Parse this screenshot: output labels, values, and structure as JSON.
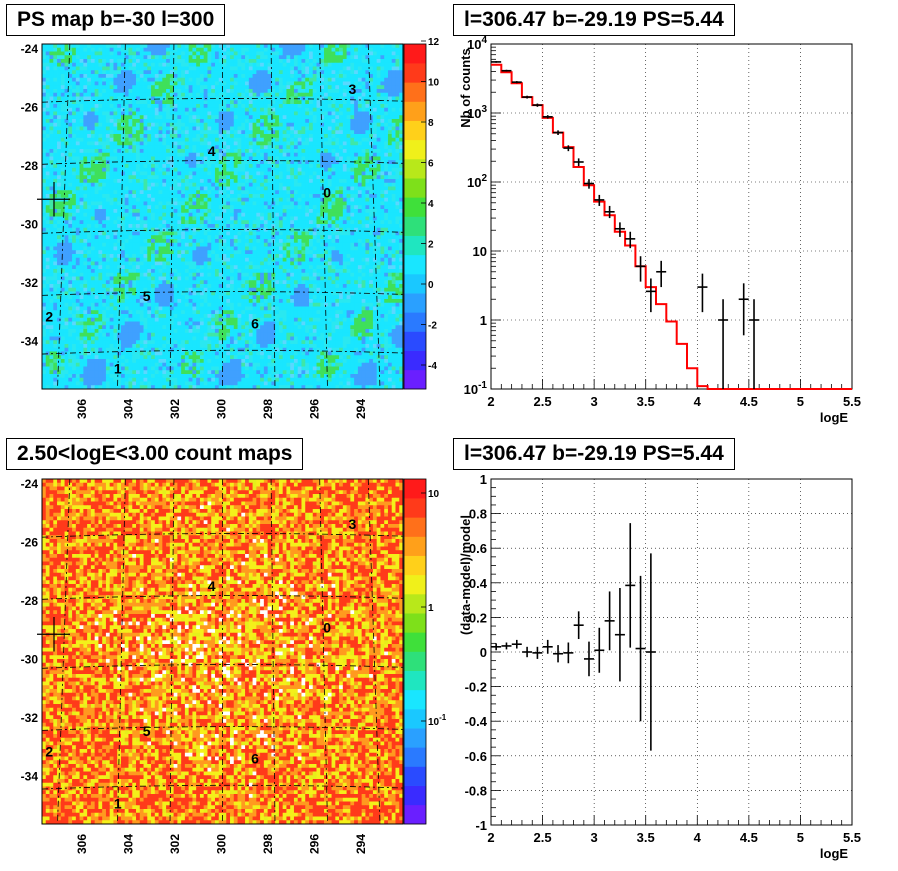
{
  "panels": {
    "map_top_title": "PS map b=-30 l=300",
    "spectrum_title": "l=306.47 b=-29.19 PS=5.44",
    "map_bottom_title": "2.50<logE<3.00 count maps",
    "residual_title": "l=306.47 b=-29.19 PS=5.44"
  },
  "chart_data": [
    {
      "type": "heatmap",
      "name": "ps-map",
      "title": "PS map b=-30 l=300",
      "xticks": [
        "306",
        "304",
        "302",
        "300",
        "298",
        "296",
        "294"
      ],
      "yticks": [
        "-24",
        "-26",
        "-28",
        "-30",
        "-32",
        "-34"
      ],
      "colorbar_ticks": [
        "-4",
        "-2",
        "0",
        "2",
        "4",
        "6",
        "8",
        "10",
        "12"
      ],
      "zlim": [
        -5,
        12
      ],
      "source_labels": [
        "0",
        "1",
        "2",
        "3",
        "4",
        "5",
        "6"
      ],
      "colors": {
        "background": "#19e6ff",
        "low": "#3fa0ff",
        "high": "#3fe05a"
      }
    },
    {
      "type": "line",
      "name": "spectrum",
      "title": "l=306.47 b=-29.19 PS=5.44",
      "xlabel": "logE",
      "ylabel": "Nb of counts",
      "xlim": [
        2,
        5.5
      ],
      "ylim": [
        0.1,
        10000
      ],
      "yscale": "log",
      "grid": true,
      "xticks": [
        "2",
        "2.5",
        "3",
        "3.5",
        "4",
        "4.5",
        "5",
        "5.5"
      ],
      "yticks": [
        "10^-1",
        "1",
        "10",
        "10^2",
        "10^3",
        "10^4"
      ],
      "model_steps": [
        {
          "x0": 2.0,
          "x1": 2.1,
          "y": 5000
        },
        {
          "x0": 2.1,
          "x1": 2.2,
          "y": 3900
        },
        {
          "x0": 2.2,
          "x1": 2.3,
          "y": 2700
        },
        {
          "x0": 2.3,
          "x1": 2.4,
          "y": 1700
        },
        {
          "x0": 2.4,
          "x1": 2.5,
          "y": 1300
        },
        {
          "x0": 2.5,
          "x1": 2.6,
          "y": 850
        },
        {
          "x0": 2.6,
          "x1": 2.7,
          "y": 520
        },
        {
          "x0": 2.7,
          "x1": 2.8,
          "y": 320
        },
        {
          "x0": 2.8,
          "x1": 2.9,
          "y": 165
        },
        {
          "x0": 2.9,
          "x1": 3.0,
          "y": 90
        },
        {
          "x0": 3.0,
          "x1": 3.1,
          "y": 52
        },
        {
          "x0": 3.1,
          "x1": 3.2,
          "y": 33
        },
        {
          "x0": 3.2,
          "x1": 3.3,
          "y": 19
        },
        {
          "x0": 3.3,
          "x1": 3.4,
          "y": 12
        },
        {
          "x0": 3.4,
          "x1": 3.5,
          "y": 6
        },
        {
          "x0": 3.5,
          "x1": 3.6,
          "y": 3
        },
        {
          "x0": 3.6,
          "x1": 3.7,
          "y": 1.7
        },
        {
          "x0": 3.7,
          "x1": 3.8,
          "y": 0.95
        },
        {
          "x0": 3.8,
          "x1": 3.9,
          "y": 0.45
        },
        {
          "x0": 3.9,
          "x1": 4.0,
          "y": 0.2
        },
        {
          "x0": 4.0,
          "x1": 4.1,
          "y": 0.11
        },
        {
          "x0": 4.1,
          "x1": 5.5,
          "y": 0.1
        }
      ],
      "points": [
        {
          "x": 2.05,
          "y": 5500,
          "lo": 5350,
          "hi": 5650
        },
        {
          "x": 2.15,
          "y": 4100,
          "lo": 3980,
          "hi": 4230
        },
        {
          "x": 2.25,
          "y": 2800,
          "lo": 2700,
          "hi": 2900
        },
        {
          "x": 2.35,
          "y": 1700,
          "lo": 1620,
          "hi": 1780
        },
        {
          "x": 2.45,
          "y": 1300,
          "lo": 1230,
          "hi": 1370
        },
        {
          "x": 2.55,
          "y": 880,
          "lo": 830,
          "hi": 930
        },
        {
          "x": 2.65,
          "y": 520,
          "lo": 480,
          "hi": 560
        },
        {
          "x": 2.75,
          "y": 310,
          "lo": 280,
          "hi": 340
        },
        {
          "x": 2.85,
          "y": 195,
          "lo": 170,
          "hi": 220
        },
        {
          "x": 2.95,
          "y": 95,
          "lo": 80,
          "hi": 110
        },
        {
          "x": 3.05,
          "y": 55,
          "lo": 45,
          "hi": 65
        },
        {
          "x": 3.15,
          "y": 37,
          "lo": 30,
          "hi": 45
        },
        {
          "x": 3.25,
          "y": 21,
          "lo": 16,
          "hi": 26
        },
        {
          "x": 3.35,
          "y": 15,
          "lo": 11,
          "hi": 19
        },
        {
          "x": 3.45,
          "y": 6,
          "lo": 3.6,
          "hi": 8.4
        },
        {
          "x": 3.55,
          "y": 2.6,
          "lo": 1.3,
          "hi": 4
        },
        {
          "x": 3.65,
          "y": 5,
          "lo": 3,
          "hi": 7.2
        },
        {
          "x": 4.05,
          "y": 3,
          "lo": 1.3,
          "hi": 4.7
        },
        {
          "x": 4.25,
          "y": 1,
          "lo": 0.1,
          "hi": 2
        },
        {
          "x": 4.45,
          "y": 2,
          "lo": 0.6,
          "hi": 3.4
        },
        {
          "x": 4.55,
          "y": 1,
          "lo": 0.1,
          "hi": 2
        }
      ],
      "colors": {
        "model": "#ff0000",
        "data": "#000000"
      }
    },
    {
      "type": "heatmap",
      "name": "count-map",
      "title": "2.50<logE<3.00 count maps",
      "xticks": [
        "306",
        "304",
        "302",
        "300",
        "298",
        "296",
        "294"
      ],
      "yticks": [
        "-24",
        "-26",
        "-28",
        "-30",
        "-32",
        "-34"
      ],
      "colorbar_ticks": [
        "10",
        "1",
        "10^-1"
      ],
      "zscale": "log",
      "source_labels": [
        "0",
        "1",
        "2",
        "3",
        "4",
        "5",
        "6"
      ],
      "colors": {
        "red": "#ff3a1a",
        "orange": "#ff9a1f",
        "yellow": "#f4f01a",
        "white": "#ffffff"
      }
    },
    {
      "type": "scatter",
      "name": "residual",
      "title": "l=306.47 b=-29.19 PS=5.44",
      "xlabel": "logE",
      "ylabel": "(data-model)/model",
      "xlim": [
        2,
        5.5
      ],
      "ylim": [
        -1,
        1
      ],
      "grid": true,
      "xticks": [
        "2",
        "2.5",
        "3",
        "3.5",
        "4",
        "4.5",
        "5",
        "5.5"
      ],
      "yticks": [
        "-1",
        "-0.8",
        "-0.6",
        "-0.4",
        "-0.2",
        "0",
        "0.2",
        "0.4",
        "0.6",
        "0.8",
        "1"
      ],
      "points": [
        {
          "x": 2.05,
          "y": 0.03,
          "err": 0.02
        },
        {
          "x": 2.15,
          "y": 0.035,
          "err": 0.02
        },
        {
          "x": 2.25,
          "y": 0.045,
          "err": 0.025
        },
        {
          "x": 2.35,
          "y": 0.0,
          "err": 0.03
        },
        {
          "x": 2.45,
          "y": -0.005,
          "err": 0.035
        },
        {
          "x": 2.55,
          "y": 0.03,
          "err": 0.04
        },
        {
          "x": 2.65,
          "y": -0.01,
          "err": 0.05
        },
        {
          "x": 2.75,
          "y": -0.005,
          "err": 0.06
        },
        {
          "x": 2.85,
          "y": 0.155,
          "err": 0.08
        },
        {
          "x": 2.95,
          "y": -0.04,
          "err": 0.1
        },
        {
          "x": 3.05,
          "y": 0.01,
          "err": 0.13
        },
        {
          "x": 3.15,
          "y": 0.18,
          "err": 0.17
        },
        {
          "x": 3.25,
          "y": 0.1,
          "err": 0.27
        },
        {
          "x": 3.35,
          "y": 0.385,
          "err": 0.36
        },
        {
          "x": 3.45,
          "y": 0.02,
          "err": 0.42
        },
        {
          "x": 3.55,
          "y": 0.0,
          "err": 0.57
        }
      ],
      "colors": {
        "data": "#000000"
      }
    }
  ]
}
